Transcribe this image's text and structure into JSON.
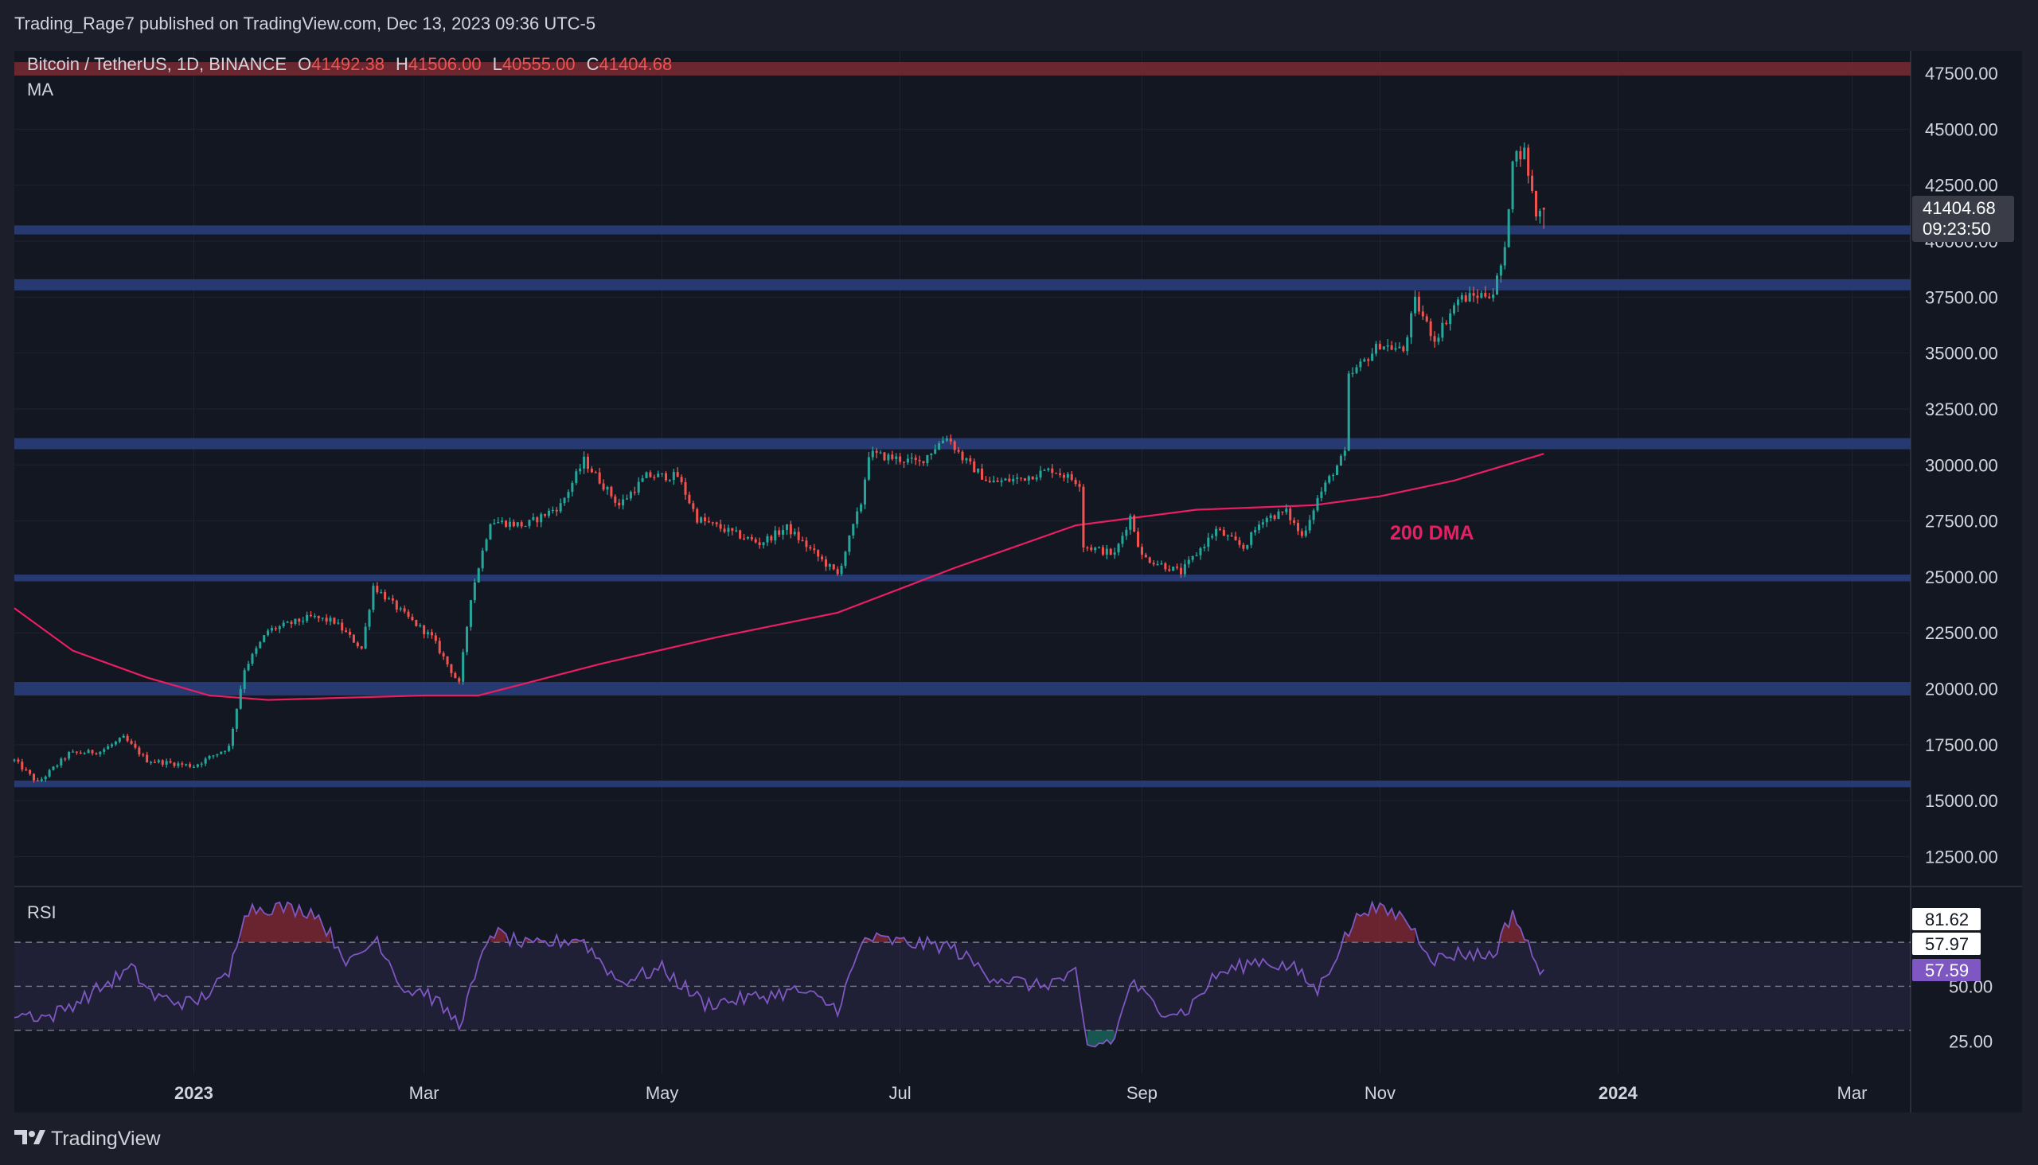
{
  "header": {
    "publisher": "Trading_Rage7 published on TradingView.com, Dec 13, 2023 09:36 UTC-5"
  },
  "legend": {
    "symbol": "Bitcoin / TetherUS, 1D, BINANCE",
    "o_label": "O",
    "o_value": "41492.38",
    "h_label": "H",
    "h_value": "41506.00",
    "l_label": "L",
    "l_value": "40555.00",
    "c_label": "C",
    "c_value": "41404.68",
    "indicator": "MA"
  },
  "price_badge": {
    "price": "41404.68",
    "countdown": "09:23:50"
  },
  "annotation": {
    "text": "200 DMA",
    "color": "#e91e63"
  },
  "rsi_panel": {
    "title": "RSI",
    "badges": [
      "81.62",
      "57.97",
      "57.59"
    ]
  },
  "footer": {
    "brand": "TradingView"
  },
  "colors": {
    "background": "#131722",
    "frame": "#1c1f2a",
    "up": "#26a69a",
    "down": "#ef5350",
    "ma": "#e91e63",
    "zone": "#2a3d7a",
    "rsi": "#7e57c2",
    "text": "#d1d4dc"
  },
  "chart_data": [
    {
      "type": "candlestick",
      "symbol": "Bitcoin / TetherUS, 1D, BINANCE",
      "x_ticks": [
        "2023",
        "Mar",
        "May",
        "Jul",
        "Sep",
        "Nov",
        "2024",
        "Mar"
      ],
      "x_tick_dates": [
        "2023-01-01",
        "2023-03-01",
        "2023-05-01",
        "2023-07-01",
        "2023-09-01",
        "2023-11-01",
        "2024-01-01",
        "2024-03-01"
      ],
      "x_range": [
        "2022-11-16",
        "2024-03-16"
      ],
      "y_ticks": [
        12500,
        15000,
        17500,
        20000,
        22500,
        25000,
        27500,
        30000,
        32500,
        35000,
        37500,
        40000,
        42500,
        45000,
        47500
      ],
      "ylim": [
        11200,
        48500
      ],
      "last_bar": {
        "date": "2023-12-13",
        "open": 41492.38,
        "high": 41506.0,
        "low": 40555.0,
        "close": 41404.68
      },
      "price_path": [
        [
          "2022-11-16",
          16800
        ],
        [
          "2022-11-22",
          15800
        ],
        [
          "2022-11-30",
          17100
        ],
        [
          "2022-12-08",
          17200
        ],
        [
          "2022-12-14",
          17800
        ],
        [
          "2022-12-20",
          16800
        ],
        [
          "2023-01-01",
          16550
        ],
        [
          "2023-01-10",
          17400
        ],
        [
          "2023-01-14",
          20900
        ],
        [
          "2023-01-20",
          22600
        ],
        [
          "2023-01-31",
          23200
        ],
        [
          "2023-02-06",
          23000
        ],
        [
          "2023-02-13",
          21800
        ],
        [
          "2023-02-16",
          24600
        ],
        [
          "2023-02-24",
          23300
        ],
        [
          "2023-03-03",
          22300
        ],
        [
          "2023-03-10",
          20200
        ],
        [
          "2023-03-13",
          24100
        ],
        [
          "2023-03-18",
          27500
        ],
        [
          "2023-03-27",
          27300
        ],
        [
          "2023-04-05",
          28200
        ],
        [
          "2023-04-11",
          30200
        ],
        [
          "2023-04-20",
          28200
        ],
        [
          "2023-04-27",
          29500
        ],
        [
          "2023-05-05",
          29500
        ],
        [
          "2023-05-10",
          27600
        ],
        [
          "2023-05-20",
          26900
        ],
        [
          "2023-05-26",
          26500
        ],
        [
          "2023-06-02",
          27200
        ],
        [
          "2023-06-10",
          25900
        ],
        [
          "2023-06-15",
          25100
        ],
        [
          "2023-06-21",
          28300
        ],
        [
          "2023-06-23",
          30500
        ],
        [
          "2023-07-06",
          30100
        ],
        [
          "2023-07-13",
          31300
        ],
        [
          "2023-07-17",
          30300
        ],
        [
          "2023-07-24",
          29200
        ],
        [
          "2023-08-01",
          29400
        ],
        [
          "2023-08-09",
          29800
        ],
        [
          "2023-08-16",
          29200
        ],
        [
          "2023-08-17",
          26400
        ],
        [
          "2023-08-25",
          26000
        ],
        [
          "2023-08-29",
          27700
        ],
        [
          "2023-09-01",
          25900
        ],
        [
          "2023-09-11",
          25200
        ],
        [
          "2023-09-20",
          27100
        ],
        [
          "2023-09-27",
          26300
        ],
        [
          "2023-10-02",
          27600
        ],
        [
          "2023-10-08",
          27900
        ],
        [
          "2023-10-12",
          26800
        ],
        [
          "2023-10-16",
          28500
        ],
        [
          "2023-10-20",
          29700
        ],
        [
          "2023-10-23",
          30500
        ],
        [
          "2023-10-24",
          33900
        ],
        [
          "2023-11-01",
          35400
        ],
        [
          "2023-11-07",
          35100
        ],
        [
          "2023-11-10",
          37300
        ],
        [
          "2023-11-15",
          35600
        ],
        [
          "2023-11-21",
          37400
        ],
        [
          "2023-11-30",
          37700
        ],
        [
          "2023-12-03",
          39500
        ],
        [
          "2023-12-05",
          43800
        ],
        [
          "2023-12-08",
          44000
        ],
        [
          "2023-12-11",
          41200
        ],
        [
          "2023-12-13",
          41404.68
        ]
      ],
      "ma200": [
        [
          "2022-11-16",
          23600
        ],
        [
          "2022-12-01",
          21700
        ],
        [
          "2022-12-20",
          20500
        ],
        [
          "2023-01-05",
          19700
        ],
        [
          "2023-01-20",
          19500
        ],
        [
          "2023-03-01",
          19700
        ],
        [
          "2023-03-15",
          19700
        ],
        [
          "2023-04-15",
          21100
        ],
        [
          "2023-05-15",
          22300
        ],
        [
          "2023-06-15",
          23400
        ],
        [
          "2023-07-15",
          25400
        ],
        [
          "2023-08-15",
          27300
        ],
        [
          "2023-09-15",
          28000
        ],
        [
          "2023-10-15",
          28200
        ],
        [
          "2023-11-01",
          28600
        ],
        [
          "2023-11-20",
          29300
        ],
        [
          "2023-12-13",
          30500
        ]
      ],
      "support_resistance_zones": [
        [
          15600,
          15900
        ],
        [
          19700,
          20300
        ],
        [
          24800,
          25100
        ],
        [
          30700,
          31200
        ],
        [
          37800,
          38300
        ],
        [
          40300,
          40700
        ],
        [
          47400,
          48000
        ]
      ],
      "annotations": [
        "200 DMA"
      ]
    },
    {
      "type": "line",
      "name": "RSI",
      "y_ticks": [
        25,
        50
      ],
      "ylim": [
        10,
        95
      ],
      "dashed_levels": [
        30,
        50,
        70
      ],
      "overbought": 70,
      "oversold": 30,
      "last_values": [
        81.62,
        57.97,
        57.59
      ],
      "rsi_path": [
        [
          "2022-11-16",
          38
        ],
        [
          "2022-11-25",
          36
        ],
        [
          "2022-12-05",
          46
        ],
        [
          "2022-12-16",
          58
        ],
        [
          "2022-12-22",
          45
        ],
        [
          "2023-01-01",
          42
        ],
        [
          "2023-01-10",
          55
        ],
        [
          "2023-01-14",
          85
        ],
        [
          "2023-01-22",
          86
        ],
        [
          "2023-02-01",
          84
        ],
        [
          "2023-02-10",
          60
        ],
        [
          "2023-02-17",
          72
        ],
        [
          "2023-02-24",
          48
        ],
        [
          "2023-03-01",
          48
        ],
        [
          "2023-03-10",
          33
        ],
        [
          "2023-03-15",
          58
        ],
        [
          "2023-03-18",
          75
        ],
        [
          "2023-03-28",
          68
        ],
        [
          "2023-04-10",
          72
        ],
        [
          "2023-04-20",
          52
        ],
        [
          "2023-05-01",
          58
        ],
        [
          "2023-05-12",
          42
        ],
        [
          "2023-05-25",
          45
        ],
        [
          "2023-06-05",
          48
        ],
        [
          "2023-06-15",
          40
        ],
        [
          "2023-06-22",
          72
        ],
        [
          "2023-07-01",
          70
        ],
        [
          "2023-07-14",
          68
        ],
        [
          "2023-07-24",
          55
        ],
        [
          "2023-08-05",
          50
        ],
        [
          "2023-08-15",
          55
        ],
        [
          "2023-08-18",
          22
        ],
        [
          "2023-08-25",
          26
        ],
        [
          "2023-08-29",
          52
        ],
        [
          "2023-09-05",
          40
        ],
        [
          "2023-09-12",
          38
        ],
        [
          "2023-09-20",
          55
        ],
        [
          "2023-10-01",
          62
        ],
        [
          "2023-10-10",
          58
        ],
        [
          "2023-10-16",
          48
        ],
        [
          "2023-10-23",
          72
        ],
        [
          "2023-10-28",
          86
        ],
        [
          "2023-11-07",
          82
        ],
        [
          "2023-11-15",
          62
        ],
        [
          "2023-11-21",
          65
        ],
        [
          "2023-11-30",
          64
        ],
        [
          "2023-12-05",
          84
        ],
        [
          "2023-12-11",
          60
        ],
        [
          "2023-12-13",
          57.59
        ]
      ]
    }
  ]
}
